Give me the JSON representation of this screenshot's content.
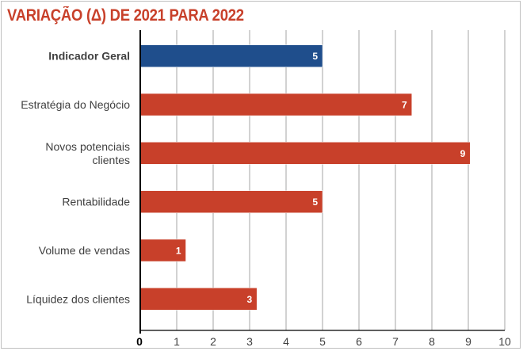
{
  "chart_data": {
    "type": "bar",
    "orientation": "horizontal",
    "title": "VARIAÇÃO (Δ) DE 2021 PARA 2022",
    "categories": [
      [
        "Indicador Geral"
      ],
      [
        "Estratégia do Negócio"
      ],
      [
        "Novos potenciais",
        "clientes"
      ],
      [
        "Rentabilidade"
      ],
      [
        "Volume de vendas"
      ],
      [
        "Líquidez dos clientes"
      ]
    ],
    "values": [
      5,
      7.45,
      9.05,
      5,
      1.25,
      3.2
    ],
    "value_labels": [
      "5",
      "7",
      "9",
      "5",
      "1",
      "3"
    ],
    "highlight_index": 0,
    "xlim": [
      0,
      10
    ],
    "xticks": [
      "0",
      "1",
      "2",
      "3",
      "4",
      "5",
      "6",
      "7",
      "8",
      "9",
      "10"
    ],
    "grid": true,
    "legend": "none",
    "colors": {
      "title": "#c8402a",
      "highlight_bar": "#1f4e8c",
      "bar": "#c8402a",
      "bar_label": "#ffffff",
      "grid": "#a6a6a6",
      "axis": "#000000",
      "text": "#404040",
      "highlight_text": "#404040"
    }
  }
}
